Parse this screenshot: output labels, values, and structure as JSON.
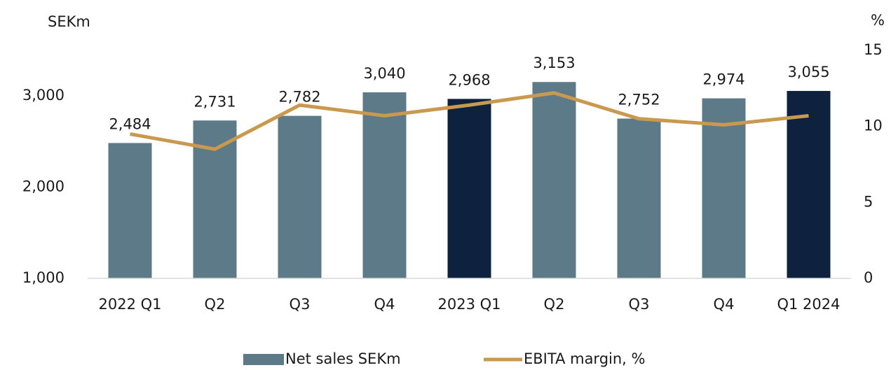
{
  "chart_data": {
    "type": "bar+line",
    "ylabel": "SEKm",
    "y2label": "%",
    "categories": [
      "2022 Q1",
      "Q2",
      "Q3",
      "Q4",
      "2023 Q1",
      "Q2",
      "Q3",
      "Q4",
      "Q1 2024"
    ],
    "series": [
      {
        "name": "Net sales SEKm",
        "type": "bar",
        "color": "#5c7a87",
        "colors": [
          "#5c7a87",
          "#5c7a87",
          "#5c7a87",
          "#5c7a87",
          "#0e2240",
          "#5c7a87",
          "#5c7a87",
          "#5c7a87",
          "#0e2240"
        ],
        "values": [
          2484,
          2731,
          2782,
          3040,
          2968,
          3153,
          2752,
          2974,
          3055
        ],
        "value_labels": [
          "2,484",
          "2,731",
          "2,782",
          "3,040",
          "2,968",
          "3,153",
          "2,752",
          "2,974",
          "3,055"
        ]
      },
      {
        "name": "EBITA margin, %",
        "type": "line",
        "axis": "y2",
        "color": "#c9994f",
        "values": [
          9.5,
          8.5,
          11.4,
          10.7,
          11.4,
          12.2,
          10.5,
          10.1,
          10.7
        ]
      }
    ],
    "ylim": [
      1000,
      3500
    ],
    "yticks": [
      {
        "value": 1000,
        "label": "1,000"
      },
      {
        "value": 2000,
        "label": "2,000"
      },
      {
        "value": 3000,
        "label": "3,000"
      }
    ],
    "y2lim": [
      0,
      15
    ],
    "y2ticks": [
      0,
      5,
      10,
      15
    ],
    "legend": "bottom"
  }
}
